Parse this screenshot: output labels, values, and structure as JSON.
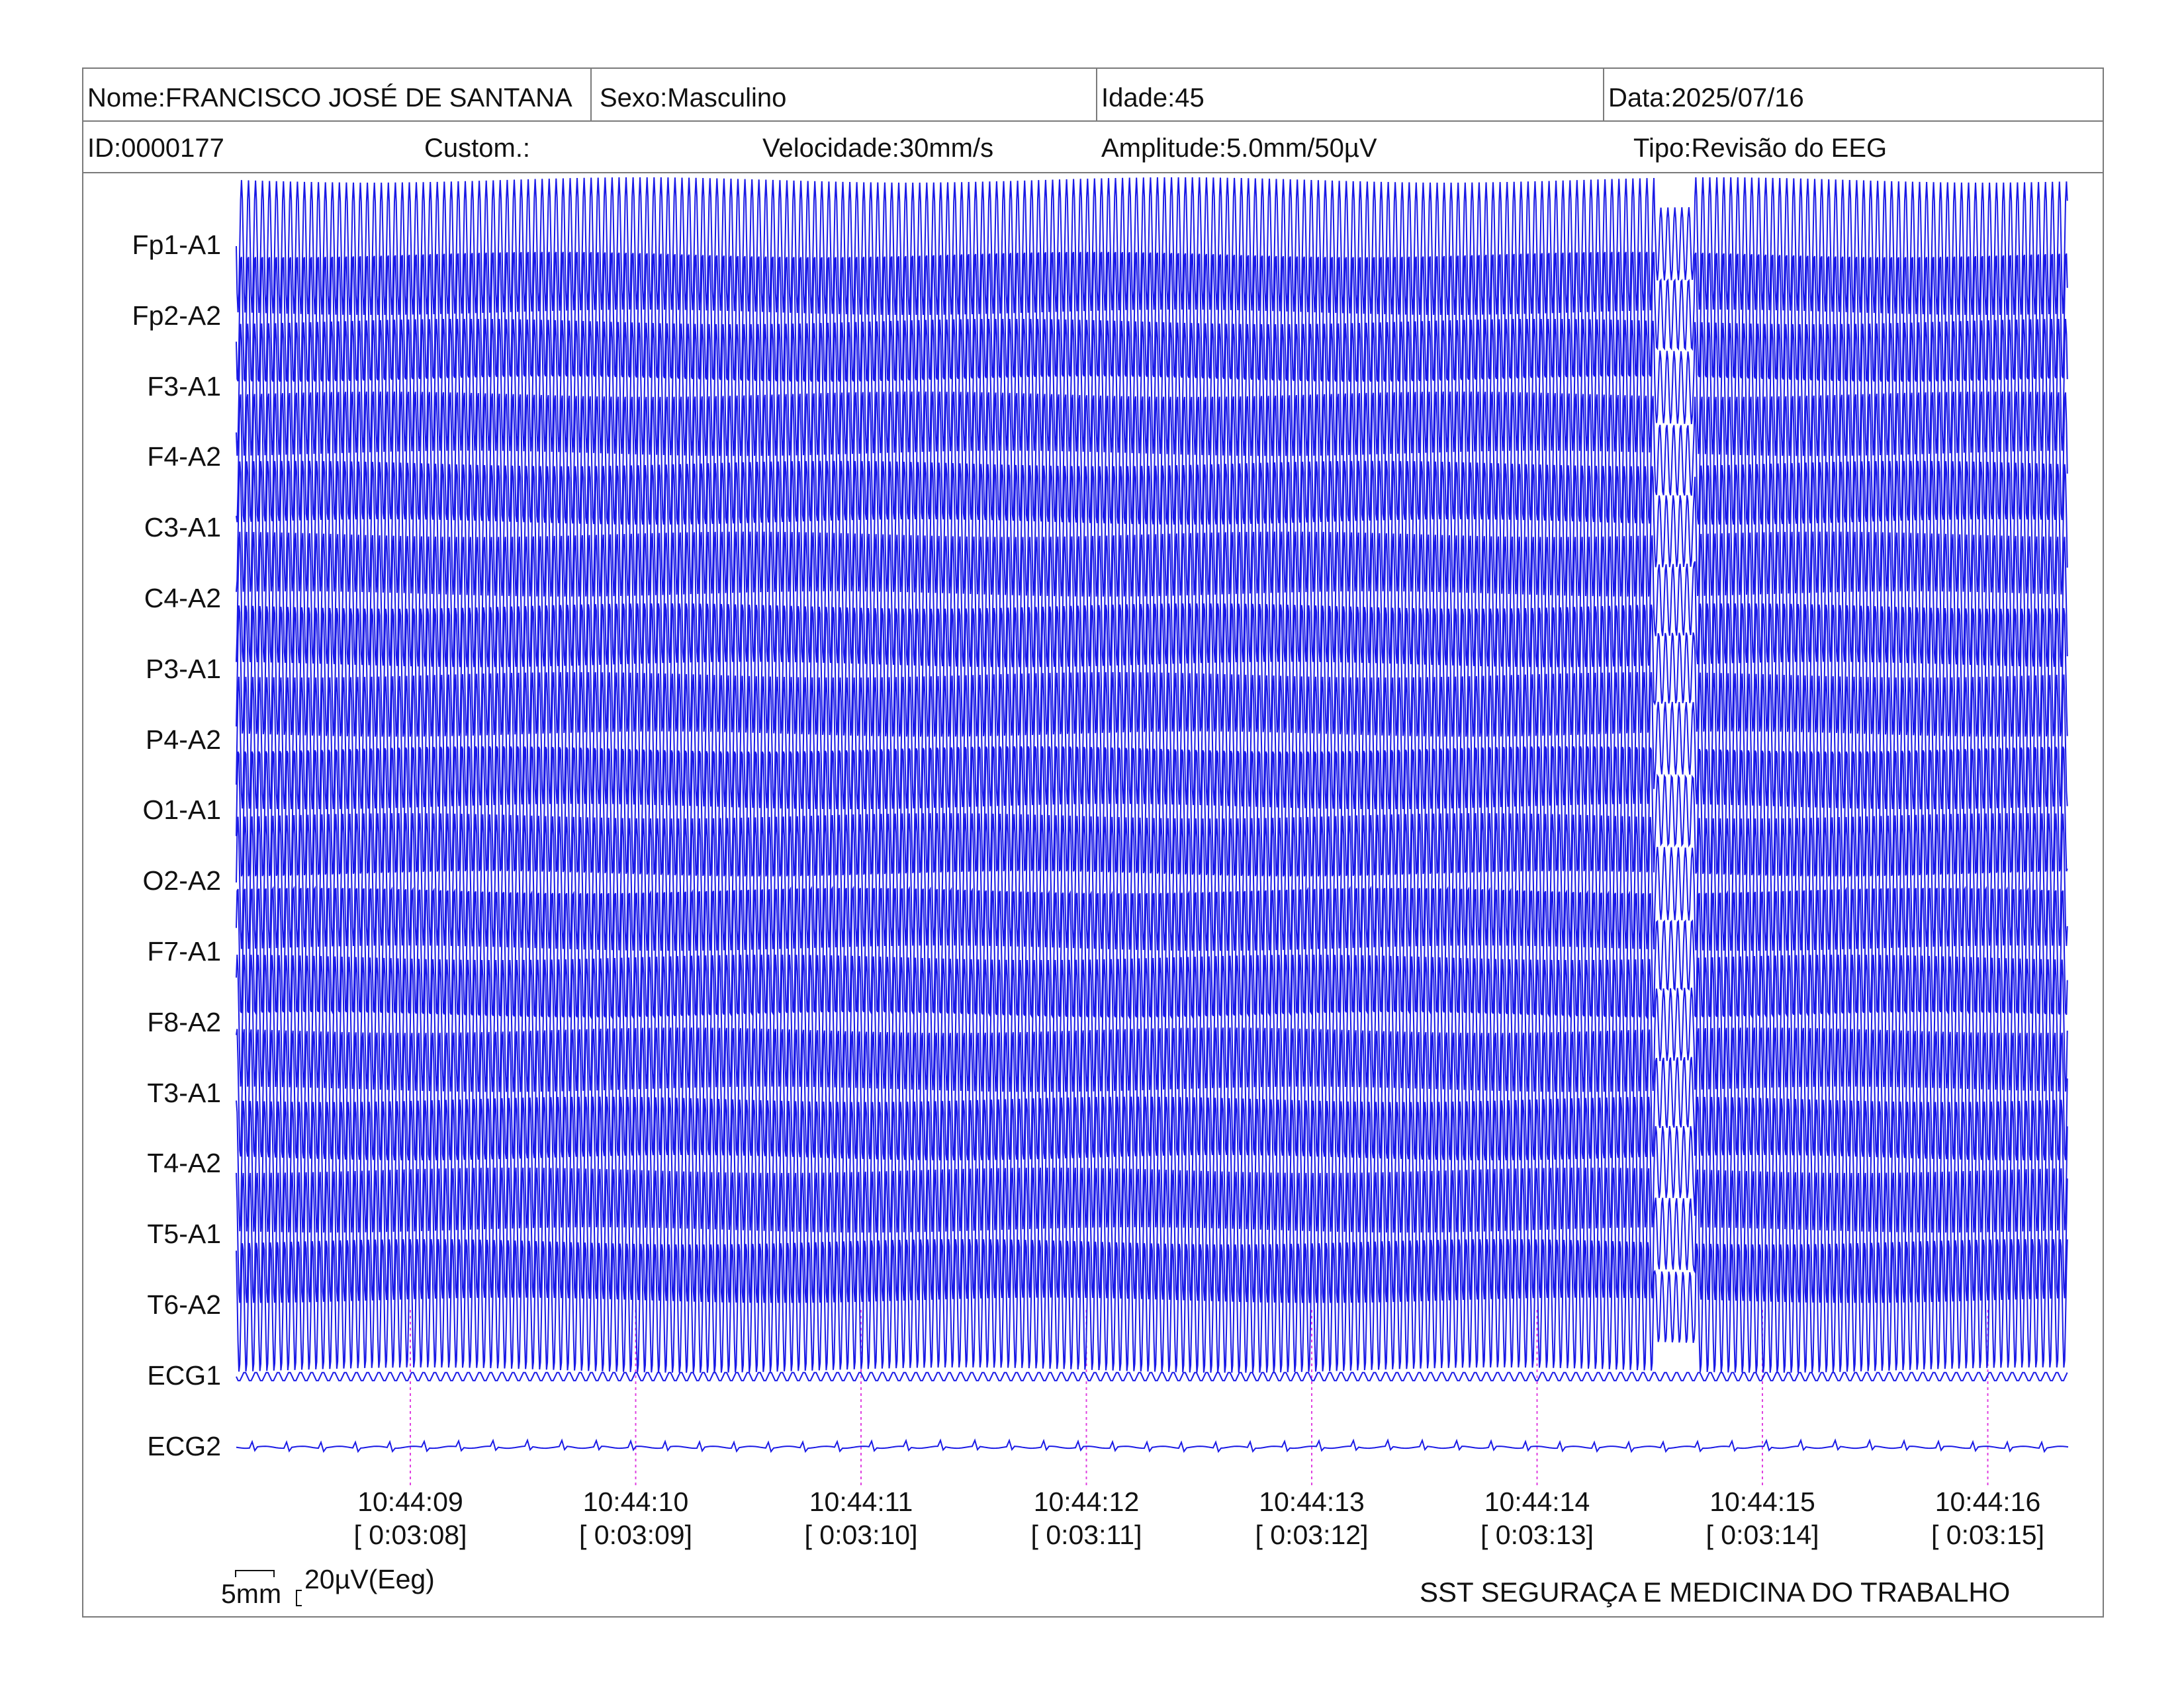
{
  "header": {
    "name": "Nome:FRANCISCO JOSÉ DE SANTANA",
    "sex": "Sexo:Masculino",
    "age": "Idade:45",
    "date": "Data:2025/07/16",
    "id": "ID:0000177",
    "custom": "Custom.:",
    "speed": "Velocidade:30mm/s",
    "amplitude": "Amplitude:5.0mm/50µV",
    "type": "Tipo:Revisão do EEG"
  },
  "channels": [
    "Fp1-A1",
    "Fp2-A2",
    "F3-A1",
    "F4-A2",
    "C3-A1",
    "C4-A2",
    "P3-A1",
    "P4-A2",
    "O1-A1",
    "O2-A2",
    "F7-A1",
    "F8-A2",
    "T3-A1",
    "T4-A2",
    "T5-A1",
    "T6-A2",
    "ECG1",
    "ECG2"
  ],
  "time_markers": [
    {
      "clock": "10:44:09",
      "elapsed": "[ 0:03:08]"
    },
    {
      "clock": "10:44:10",
      "elapsed": "[ 0:03:09]"
    },
    {
      "clock": "10:44:11",
      "elapsed": "[ 0:03:10]"
    },
    {
      "clock": "10:44:12",
      "elapsed": "[ 0:03:11]"
    },
    {
      "clock": "10:44:13",
      "elapsed": "[ 0:03:12]"
    },
    {
      "clock": "10:44:14",
      "elapsed": "[ 0:03:13]"
    },
    {
      "clock": "10:44:15",
      "elapsed": "[ 0:03:14]"
    },
    {
      "clock": "10:44:16",
      "elapsed": "[ 0:03:15]"
    }
  ],
  "scale": {
    "time_label": "5mm",
    "amp_label": "20µV(Eeg)"
  },
  "footer": {
    "org": "SST SEGURAÇA E MEDICINA DO TRABALHO"
  },
  "colors": {
    "trace": "#1a1ae6",
    "marker": "#e040e0",
    "border": "#7a7a7a"
  }
}
